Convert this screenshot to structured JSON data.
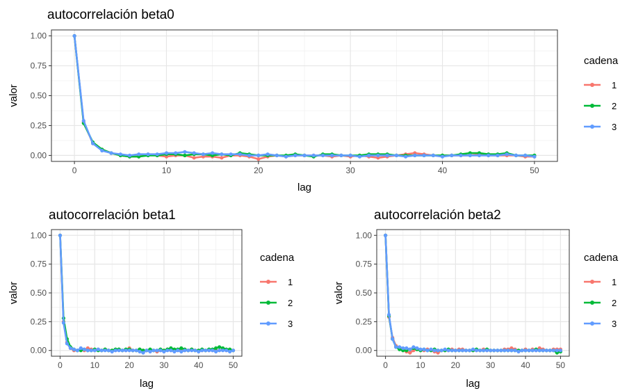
{
  "chart_data": [
    {
      "type": "line",
      "title": "autocorrelación beta0",
      "xlabel": "lag",
      "ylabel": "valor",
      "xlim": [
        -2.5,
        52.5
      ],
      "ylim": [
        -0.05,
        1.05
      ],
      "xticks": [
        0,
        10,
        20,
        30,
        40,
        50
      ],
      "yticks": [
        0.0,
        0.25,
        0.5,
        0.75,
        1.0
      ],
      "xtick_labels": [
        "0",
        "10",
        "20",
        "30",
        "40",
        "50"
      ],
      "ytick_labels": [
        "0.00",
        "0.25",
        "0.50",
        "0.75",
        "1.00"
      ],
      "grid": true,
      "legend": {
        "title": "cadena",
        "position": "right"
      },
      "series": [
        {
          "name": "1",
          "color": "#F8766D",
          "x": [
            0,
            1,
            2,
            3,
            4,
            5,
            6,
            7,
            8,
            9,
            10,
            11,
            12,
            13,
            14,
            15,
            16,
            17,
            18,
            19,
            20,
            21,
            22,
            23,
            24,
            25,
            26,
            27,
            28,
            29,
            30,
            31,
            32,
            33,
            34,
            35,
            36,
            37,
            38,
            39,
            40,
            41,
            42,
            43,
            44,
            45,
            46,
            47,
            48,
            49,
            50
          ],
          "y": [
            1.0,
            0.28,
            0.1,
            0.05,
            0.02,
            0.0,
            -0.01,
            -0.01,
            0.01,
            0.0,
            -0.01,
            0.0,
            0.0,
            -0.02,
            -0.01,
            -0.01,
            -0.02,
            0.0,
            0.0,
            -0.01,
            -0.03,
            -0.01,
            0.0,
            -0.01,
            0.0,
            0.0,
            0.0,
            0.0,
            -0.01,
            0.0,
            -0.01,
            0.0,
            -0.01,
            -0.02,
            -0.01,
            0.0,
            0.01,
            0.02,
            0.01,
            0.0,
            0.0,
            0.0,
            0.0,
            0.0,
            0.01,
            0.0,
            0.0,
            0.0,
            0.0,
            -0.01,
            -0.01
          ]
        },
        {
          "name": "2",
          "color": "#00BA38",
          "x": [
            0,
            1,
            2,
            3,
            4,
            5,
            6,
            7,
            8,
            9,
            10,
            11,
            12,
            13,
            14,
            15,
            16,
            17,
            18,
            19,
            20,
            21,
            22,
            23,
            24,
            25,
            26,
            27,
            28,
            29,
            30,
            31,
            32,
            33,
            34,
            35,
            36,
            37,
            38,
            39,
            40,
            41,
            42,
            43,
            44,
            45,
            46,
            47,
            48,
            49,
            50
          ],
          "y": [
            1.0,
            0.27,
            0.11,
            0.05,
            0.02,
            0.0,
            -0.01,
            -0.01,
            0.0,
            0.0,
            0.01,
            0.01,
            0.0,
            0.01,
            0.01,
            0.0,
            0.01,
            0.0,
            0.02,
            0.01,
            0.0,
            0.0,
            0.0,
            0.0,
            0.01,
            0.0,
            -0.01,
            0.01,
            0.01,
            0.0,
            0.0,
            0.0,
            0.01,
            0.01,
            0.01,
            0.0,
            0.0,
            0.0,
            0.0,
            0.0,
            0.0,
            0.0,
            0.01,
            0.02,
            0.02,
            0.01,
            0.01,
            0.02,
            0.0,
            0.0,
            0.0
          ]
        },
        {
          "name": "3",
          "color": "#619CFF",
          "x": [
            0,
            1,
            2,
            3,
            4,
            5,
            6,
            7,
            8,
            9,
            10,
            11,
            12,
            13,
            14,
            15,
            16,
            17,
            18,
            19,
            20,
            21,
            22,
            23,
            24,
            25,
            26,
            27,
            28,
            29,
            30,
            31,
            32,
            33,
            34,
            35,
            36,
            37,
            38,
            39,
            40,
            41,
            42,
            43,
            44,
            45,
            46,
            47,
            48,
            49,
            50
          ],
          "y": [
            1.0,
            0.29,
            0.1,
            0.04,
            0.02,
            0.01,
            0.0,
            0.01,
            0.01,
            0.01,
            0.02,
            0.02,
            0.03,
            0.02,
            0.01,
            0.02,
            0.01,
            0.01,
            0.01,
            0.0,
            0.0,
            0.01,
            0.0,
            -0.01,
            0.0,
            0.0,
            0.0,
            0.0,
            0.0,
            0.0,
            0.0,
            -0.01,
            0.0,
            0.0,
            0.0,
            0.0,
            -0.01,
            0.0,
            0.0,
            0.0,
            -0.01,
            0.0,
            0.0,
            0.0,
            0.0,
            0.0,
            0.0,
            0.01,
            0.0,
            0.0,
            -0.01
          ]
        }
      ]
    },
    {
      "type": "line",
      "title": "autocorrelación beta1",
      "xlabel": "lag",
      "ylabel": "valor",
      "xlim": [
        -2.5,
        52.5
      ],
      "ylim": [
        -0.05,
        1.05
      ],
      "xticks": [
        0,
        10,
        20,
        30,
        40,
        50
      ],
      "yticks": [
        0.0,
        0.25,
        0.5,
        0.75,
        1.0
      ],
      "xtick_labels": [
        "0",
        "10",
        "20",
        "30",
        "40",
        "50"
      ],
      "ytick_labels": [
        "0.00",
        "0.25",
        "0.50",
        "0.75",
        "1.00"
      ],
      "grid": true,
      "legend": {
        "title": "cadena",
        "position": "right"
      },
      "series": [
        {
          "name": "1",
          "color": "#F8766D",
          "x": [
            0,
            1,
            2,
            3,
            4,
            5,
            6,
            7,
            8,
            9,
            10,
            11,
            12,
            13,
            14,
            15,
            16,
            17,
            18,
            19,
            20,
            21,
            22,
            23,
            24,
            25,
            26,
            27,
            28,
            29,
            30,
            31,
            32,
            33,
            34,
            35,
            36,
            37,
            38,
            39,
            40,
            41,
            42,
            43,
            44,
            45,
            46,
            47,
            48,
            49,
            50
          ],
          "y": [
            1.0,
            0.25,
            0.07,
            0.02,
            0.0,
            0.0,
            0.01,
            0.0,
            0.02,
            0.01,
            0.0,
            0.01,
            0.0,
            0.01,
            0.0,
            0.0,
            0.0,
            0.01,
            0.0,
            0.0,
            0.02,
            0.0,
            0.0,
            0.01,
            0.0,
            0.0,
            0.0,
            0.0,
            -0.01,
            0.0,
            0.0,
            0.01,
            0.0,
            0.0,
            0.0,
            0.0,
            0.0,
            0.0,
            0.01,
            0.0,
            0.0,
            0.0,
            0.0,
            0.0,
            0.0,
            0.0,
            0.0,
            0.01,
            0.0,
            0.0,
            0.0
          ]
        },
        {
          "name": "2",
          "color": "#00BA38",
          "x": [
            0,
            1,
            2,
            3,
            4,
            5,
            6,
            7,
            8,
            9,
            10,
            11,
            12,
            13,
            14,
            15,
            16,
            17,
            18,
            19,
            20,
            21,
            22,
            23,
            24,
            25,
            26,
            27,
            28,
            29,
            30,
            31,
            32,
            33,
            34,
            35,
            36,
            37,
            38,
            39,
            40,
            41,
            42,
            43,
            44,
            45,
            46,
            47,
            48,
            49,
            50
          ],
          "y": [
            1.0,
            0.28,
            0.1,
            0.03,
            0.01,
            0.0,
            0.0,
            0.01,
            0.0,
            0.0,
            0.01,
            0.0,
            0.0,
            0.01,
            0.0,
            0.0,
            0.01,
            0.01,
            0.0,
            0.01,
            0.01,
            0.0,
            0.0,
            0.01,
            0.0,
            0.0,
            0.01,
            0.0,
            0.0,
            0.01,
            0.0,
            0.01,
            0.02,
            0.01,
            0.01,
            0.02,
            0.01,
            0.0,
            0.01,
            0.0,
            0.0,
            0.01,
            0.0,
            0.01,
            0.01,
            0.02,
            0.03,
            0.02,
            0.01,
            0.01,
            0.0
          ]
        },
        {
          "name": "3",
          "color": "#619CFF",
          "x": [
            0,
            1,
            2,
            3,
            4,
            5,
            6,
            7,
            8,
            9,
            10,
            11,
            12,
            13,
            14,
            15,
            16,
            17,
            18,
            19,
            20,
            21,
            22,
            23,
            24,
            25,
            26,
            27,
            28,
            29,
            30,
            31,
            32,
            33,
            34,
            35,
            36,
            37,
            38,
            39,
            40,
            41,
            42,
            43,
            44,
            45,
            46,
            47,
            48,
            49,
            50
          ],
          "y": [
            1.0,
            0.24,
            0.06,
            0.02,
            0.01,
            0.0,
            0.02,
            0.01,
            0.0,
            0.0,
            0.0,
            0.01,
            0.0,
            0.0,
            0.0,
            -0.01,
            0.0,
            0.0,
            0.0,
            0.0,
            0.0,
            0.0,
            0.0,
            -0.01,
            -0.02,
            0.0,
            -0.01,
            0.0,
            0.0,
            0.0,
            -0.01,
            0.0,
            0.0,
            -0.01,
            0.0,
            -0.01,
            0.0,
            0.0,
            0.0,
            0.0,
            -0.01,
            0.0,
            0.0,
            0.0,
            0.0,
            -0.01,
            0.0,
            0.0,
            0.0,
            -0.01,
            0.0
          ]
        }
      ]
    },
    {
      "type": "line",
      "title": "autocorrelación beta2",
      "xlabel": "lag",
      "ylabel": "valor",
      "xlim": [
        -2.5,
        52.5
      ],
      "ylim": [
        -0.05,
        1.05
      ],
      "xticks": [
        0,
        10,
        20,
        30,
        40,
        50
      ],
      "yticks": [
        0.0,
        0.25,
        0.5,
        0.75,
        1.0
      ],
      "xtick_labels": [
        "0",
        "10",
        "20",
        "30",
        "40",
        "50"
      ],
      "ytick_labels": [
        "0.00",
        "0.25",
        "0.50",
        "0.75",
        "1.00"
      ],
      "grid": true,
      "legend": {
        "title": "cadena",
        "position": "right"
      },
      "series": [
        {
          "name": "1",
          "color": "#F8766D",
          "x": [
            0,
            1,
            2,
            3,
            4,
            5,
            6,
            7,
            8,
            9,
            10,
            11,
            12,
            13,
            14,
            15,
            16,
            17,
            18,
            19,
            20,
            21,
            22,
            23,
            24,
            25,
            26,
            27,
            28,
            29,
            30,
            31,
            32,
            33,
            34,
            35,
            36,
            37,
            38,
            39,
            40,
            41,
            42,
            43,
            44,
            45,
            46,
            47,
            48,
            49,
            50
          ],
          "y": [
            1.0,
            0.29,
            0.11,
            0.04,
            0.02,
            0.0,
            -0.01,
            -0.02,
            0.0,
            0.01,
            0.0,
            0.0,
            0.01,
            0.0,
            -0.01,
            -0.02,
            0.0,
            0.0,
            0.0,
            0.01,
            0.0,
            0.01,
            0.01,
            0.0,
            0.0,
            0.0,
            0.0,
            0.0,
            0.01,
            0.0,
            0.0,
            0.0,
            0.0,
            0.0,
            0.01,
            0.01,
            0.02,
            0.01,
            0.0,
            0.0,
            0.01,
            0.0,
            0.01,
            0.0,
            0.02,
            0.01,
            0.0,
            0.0,
            0.01,
            0.01,
            0.01
          ]
        },
        {
          "name": "2",
          "color": "#00BA38",
          "x": [
            0,
            1,
            2,
            3,
            4,
            5,
            6,
            7,
            8,
            9,
            10,
            11,
            12,
            13,
            14,
            15,
            16,
            17,
            18,
            19,
            20,
            21,
            22,
            23,
            24,
            25,
            26,
            27,
            28,
            29,
            30,
            31,
            32,
            33,
            34,
            35,
            36,
            37,
            38,
            39,
            40,
            41,
            42,
            43,
            44,
            45,
            46,
            47,
            48,
            49,
            50
          ],
          "y": [
            1.0,
            0.3,
            0.1,
            0.03,
            0.01,
            0.0,
            0.0,
            0.01,
            0.02,
            0.01,
            0.0,
            0.01,
            0.0,
            0.0,
            0.01,
            0.0,
            0.0,
            0.0,
            0.01,
            0.0,
            0.0,
            0.0,
            0.0,
            0.0,
            0.0,
            0.0,
            0.01,
            0.0,
            0.0,
            0.01,
            0.0,
            0.0,
            0.0,
            0.0,
            0.0,
            0.0,
            0.0,
            0.0,
            0.0,
            0.0,
            0.0,
            0.0,
            0.0,
            0.01,
            0.0,
            0.0,
            0.0,
            0.0,
            0.0,
            -0.02,
            -0.01
          ]
        },
        {
          "name": "3",
          "color": "#619CFF",
          "x": [
            0,
            1,
            2,
            3,
            4,
            5,
            6,
            7,
            8,
            9,
            10,
            11,
            12,
            13,
            14,
            15,
            16,
            17,
            18,
            19,
            20,
            21,
            22,
            23,
            24,
            25,
            26,
            27,
            28,
            29,
            30,
            31,
            32,
            33,
            34,
            35,
            36,
            37,
            38,
            39,
            40,
            41,
            42,
            43,
            44,
            45,
            46,
            47,
            48,
            49,
            50
          ],
          "y": [
            1.0,
            0.31,
            0.1,
            0.03,
            0.03,
            0.02,
            0.02,
            0.01,
            0.03,
            0.02,
            0.01,
            0.01,
            0.0,
            0.01,
            0.0,
            0.0,
            0.0,
            0.01,
            0.0,
            0.0,
            0.0,
            0.0,
            0.0,
            0.0,
            0.0,
            0.01,
            0.0,
            0.0,
            0.0,
            0.0,
            0.0,
            0.0,
            0.0,
            0.0,
            0.0,
            0.0,
            0.0,
            0.0,
            -0.01,
            0.0,
            0.0,
            0.0,
            0.0,
            0.0,
            0.0,
            0.0,
            0.0,
            0.0,
            0.0,
            0.0,
            0.0
          ]
        }
      ]
    }
  ]
}
